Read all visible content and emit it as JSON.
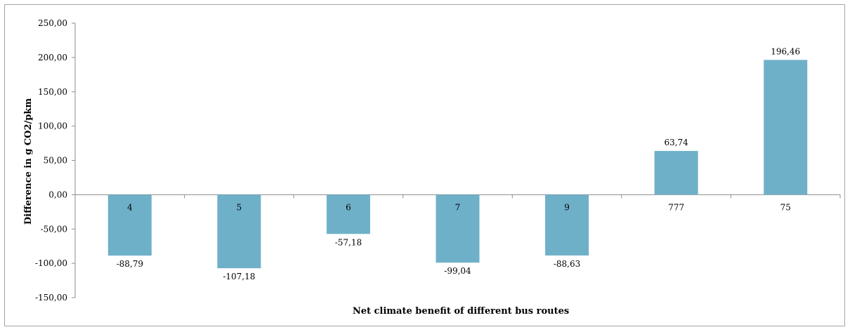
{
  "chart_data": {
    "type": "bar",
    "title": "",
    "xlabel": "Net climate benefit of different bus routes",
    "ylabel": "Difference in g CO2/pkm",
    "categories": [
      "4",
      "5",
      "6",
      "7",
      "9",
      "777",
      "75"
    ],
    "values": [
      -88.79,
      -107.18,
      -57.18,
      -99.04,
      -88.63,
      63.74,
      196.46
    ],
    "data_labels": [
      "-88,79",
      "-107,18",
      "-57,18",
      "-99,04",
      "-88,63",
      "63,74",
      "196,46"
    ],
    "ylim": [
      -150,
      250
    ],
    "y_ticks": [
      250,
      200,
      150,
      100,
      50,
      0,
      -50,
      -100,
      -150
    ],
    "y_tick_labels": [
      "250,00",
      "200,00",
      "150,00",
      "100,00",
      "50,00",
      "0,00",
      "-50,00",
      "-100,00",
      "-150,00"
    ],
    "bar_color": "#6fb0c9",
    "grid": false,
    "legend": "none"
  }
}
